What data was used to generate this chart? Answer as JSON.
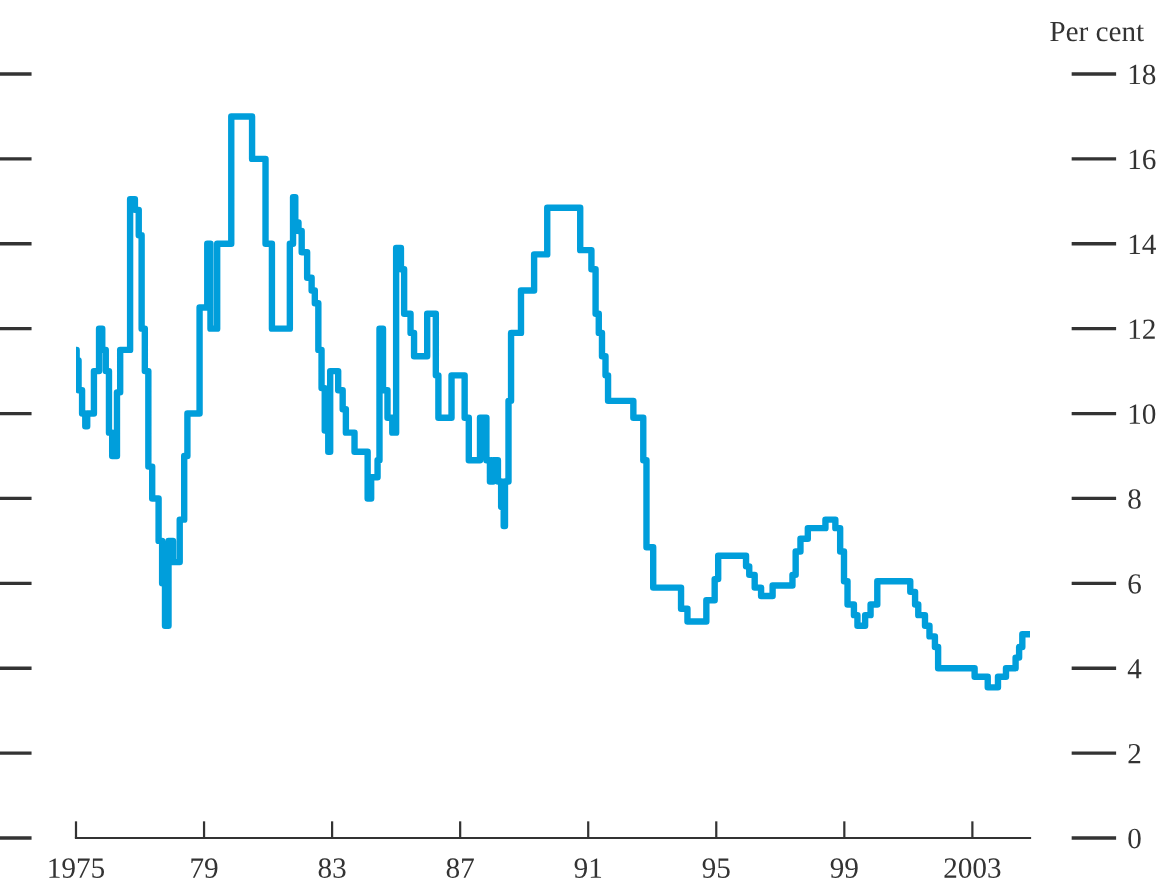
{
  "chart_data": {
    "type": "step",
    "ylabel": "Per cent",
    "x": [
      1975.0,
      1975.02,
      1975.08,
      1975.19,
      1975.29,
      1975.35,
      1975.56,
      1975.72,
      1975.82,
      1975.93,
      1976.03,
      1976.13,
      1976.28,
      1976.38,
      1976.69,
      1976.84,
      1976.96,
      1977.05,
      1977.15,
      1977.26,
      1977.38,
      1977.58,
      1977.69,
      1977.78,
      1977.89,
      1978.03,
      1978.24,
      1978.38,
      1978.48,
      1978.86,
      1979.1,
      1979.2,
      1979.41,
      1979.85,
      1980.5,
      1980.92,
      1981.12,
      1981.68,
      1981.78,
      1981.85,
      1981.95,
      1982.05,
      1982.22,
      1982.36,
      1982.46,
      1982.57,
      1982.67,
      1982.77,
      1982.88,
      1982.94,
      1983.19,
      1983.33,
      1983.43,
      1983.7,
      1984.11,
      1984.22,
      1984.42,
      1984.48,
      1984.59,
      1984.73,
      1984.88,
      1985.0,
      1985.15,
      1985.25,
      1985.45,
      1985.56,
      1985.97,
      1986.24,
      1986.32,
      1986.73,
      1987.14,
      1987.27,
      1987.62,
      1987.82,
      1987.93,
      1988.03,
      1988.18,
      1988.28,
      1988.36,
      1988.4,
      1988.51,
      1988.59,
      1988.9,
      1989.31,
      1989.72,
      1990.75,
      1991.1,
      1991.23,
      1991.33,
      1991.43,
      1991.54,
      1991.62,
      1992.41,
      1992.72,
      1992.82,
      1993.03,
      1993.9,
      1994.1,
      1994.69,
      1994.95,
      1995.06,
      1995.93,
      1996.03,
      1996.2,
      1996.4,
      1996.76,
      1997.38,
      1997.48,
      1997.63,
      1997.86,
      1998.41,
      1998.72,
      1998.87,
      1998.99,
      1999.1,
      1999.3,
      1999.41,
      1999.65,
      1999.82,
      2000.03,
      2001.06,
      2001.21,
      2001.31,
      2001.52,
      2001.66,
      2001.83,
      2001.93,
      2003.07,
      2003.48,
      2003.8,
      2004.05,
      2004.35,
      2004.46,
      2004.56,
      2004.72
    ],
    "values": [
      11.5,
      11.25,
      10.55,
      10.0,
      9.7,
      10.0,
      11.0,
      12.0,
      11.5,
      11.0,
      9.55,
      9.0,
      10.5,
      11.5,
      15.05,
      14.8,
      14.2,
      12.0,
      11.0,
      8.75,
      8.0,
      7.0,
      6.0,
      5.0,
      7.0,
      6.5,
      7.5,
      9.0,
      10.0,
      12.5,
      14.0,
      12.0,
      14.0,
      17.0,
      16.0,
      14.0,
      12.0,
      14.0,
      15.1,
      14.5,
      14.3,
      13.8,
      13.2,
      12.9,
      12.6,
      11.5,
      10.6,
      9.6,
      9.1,
      11.0,
      10.55,
      10.1,
      9.55,
      9.1,
      8.0,
      8.5,
      8.9,
      12.0,
      10.55,
      9.9,
      9.55,
      13.9,
      13.4,
      12.35,
      11.9,
      11.35,
      12.35,
      10.9,
      9.9,
      10.9,
      9.9,
      8.9,
      9.9,
      8.9,
      8.4,
      8.9,
      8.4,
      7.8,
      7.35,
      8.4,
      10.3,
      11.9,
      12.9,
      13.75,
      14.85,
      13.85,
      13.4,
      12.35,
      11.9,
      11.35,
      10.9,
      10.3,
      9.9,
      8.9,
      6.85,
      5.9,
      5.4,
      5.1,
      5.6,
      6.1,
      6.65,
      6.4,
      6.2,
      5.9,
      5.7,
      5.95,
      6.2,
      6.75,
      7.05,
      7.3,
      7.5,
      7.3,
      6.75,
      6.05,
      5.5,
      5.25,
      5.0,
      5.25,
      5.5,
      6.05,
      5.8,
      5.5,
      5.25,
      5.0,
      4.75,
      4.5,
      4.0,
      3.8,
      3.55,
      3.8,
      4.0,
      4.25,
      4.5,
      4.8,
      4.8
    ],
    "color": "#009edb",
    "xlim": [
      1975,
      2004.8
    ],
    "xticks": [
      {
        "value": 1975,
        "label": "1975"
      },
      {
        "value": 1979,
        "label": "79"
      },
      {
        "value": 1983,
        "label": "83"
      },
      {
        "value": 1987,
        "label": "87"
      },
      {
        "value": 1991,
        "label": "91"
      },
      {
        "value": 1995,
        "label": "95"
      },
      {
        "value": 1999,
        "label": "99"
      },
      {
        "value": 2003,
        "label": "2003"
      }
    ],
    "ylim": [
      0,
      18
    ],
    "yticks": [
      0,
      2,
      4,
      6,
      8,
      10,
      12,
      14,
      16,
      18
    ],
    "grid": false,
    "legend": false
  }
}
